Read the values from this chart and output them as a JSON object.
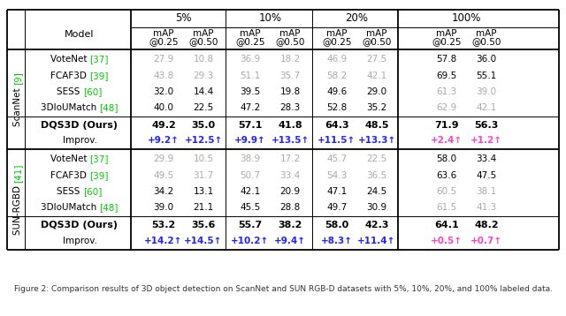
{
  "scannet_label_parts": [
    [
      "ScanNet ",
      "#000000"
    ],
    [
      "[9]",
      "#00cc00"
    ]
  ],
  "sunrgbd_label_parts": [
    [
      "SUN-RGBD ",
      "#000000"
    ],
    [
      "[41]",
      "#00cc00"
    ]
  ],
  "model_names": [
    [
      [
        "VoteNet ",
        "#000000"
      ],
      [
        "[37]",
        "#00cc00"
      ]
    ],
    [
      [
        "FCAF3D ",
        "#000000"
      ],
      [
        "[39]",
        "#00cc00"
      ]
    ],
    [
      [
        "SESS ",
        "#000000"
      ],
      [
        "[60]",
        "#00cc00"
      ]
    ],
    [
      [
        "3DIoUMatch ",
        "#000000"
      ],
      [
        "[48]",
        "#00cc00"
      ]
    ]
  ],
  "scannet_rows": [
    [
      "27.9",
      "10.8",
      "36.9",
      "18.2",
      "46.9",
      "27.5",
      "57.8",
      "36.0"
    ],
    [
      "43.8",
      "29.3",
      "51.1",
      "35.7",
      "58.2",
      "42.1",
      "69.5",
      "55.1"
    ],
    [
      "32.0",
      "14.4",
      "39.5",
      "19.8",
      "49.6",
      "29.0",
      "61.3",
      "39.0"
    ],
    [
      "40.0",
      "22.5",
      "47.2",
      "28.3",
      "52.8",
      "35.2",
      "62.9",
      "42.1"
    ]
  ],
  "scannet_row_colors": [
    [
      "#aaaaaa",
      "#aaaaaa",
      "#aaaaaa",
      "#aaaaaa",
      "#aaaaaa",
      "#aaaaaa",
      "#000000",
      "#000000"
    ],
    [
      "#aaaaaa",
      "#aaaaaa",
      "#aaaaaa",
      "#aaaaaa",
      "#aaaaaa",
      "#aaaaaa",
      "#000000",
      "#000000"
    ],
    [
      "#000000",
      "#000000",
      "#000000",
      "#000000",
      "#000000",
      "#000000",
      "#aaaaaa",
      "#aaaaaa"
    ],
    [
      "#000000",
      "#000000",
      "#000000",
      "#000000",
      "#000000",
      "#000000",
      "#aaaaaa",
      "#aaaaaa"
    ]
  ],
  "scannet_ours_vals": [
    "49.2",
    "35.0",
    "57.1",
    "41.8",
    "64.3",
    "48.5",
    "71.9",
    "56.3"
  ],
  "scannet_improv_vals": [
    "+9.2↑",
    "+12.5↑",
    "+9.9↑",
    "+13.5↑",
    "+11.5↑",
    "+13.3↑",
    "+2.4↑",
    "+1.2↑"
  ],
  "scannet_improv_colors": [
    "#2222ff",
    "#2222ff",
    "#2222ff",
    "#2222ff",
    "#2222ff",
    "#2222ff",
    "#ff44bb",
    "#ff44bb"
  ],
  "sunrgbd_rows": [
    [
      "29.9",
      "10.5",
      "38.9",
      "17.2",
      "45.7",
      "22.5",
      "58.0",
      "33.4"
    ],
    [
      "49.5",
      "31.7",
      "50.7",
      "33.4",
      "54.3",
      "36.5",
      "63.6",
      "47.5"
    ],
    [
      "34.2",
      "13.1",
      "42.1",
      "20.9",
      "47.1",
      "24.5",
      "60.5",
      "38.1"
    ],
    [
      "39.0",
      "21.1",
      "45.5",
      "28.8",
      "49.7",
      "30.9",
      "61.5",
      "41.3"
    ]
  ],
  "sunrgbd_row_colors": [
    [
      "#aaaaaa",
      "#aaaaaa",
      "#aaaaaa",
      "#aaaaaa",
      "#aaaaaa",
      "#aaaaaa",
      "#000000",
      "#000000"
    ],
    [
      "#aaaaaa",
      "#aaaaaa",
      "#aaaaaa",
      "#aaaaaa",
      "#aaaaaa",
      "#aaaaaa",
      "#000000",
      "#000000"
    ],
    [
      "#000000",
      "#000000",
      "#000000",
      "#000000",
      "#000000",
      "#000000",
      "#aaaaaa",
      "#aaaaaa"
    ],
    [
      "#000000",
      "#000000",
      "#000000",
      "#000000",
      "#000000",
      "#000000",
      "#aaaaaa",
      "#aaaaaa"
    ]
  ],
  "sunrgbd_ours_vals": [
    "53.2",
    "35.6",
    "55.7",
    "38.2",
    "58.0",
    "42.3",
    "64.1",
    "48.2"
  ],
  "sunrgbd_improv_vals": [
    "+14.2↑",
    "+14.5↑",
    "+10.2↑",
    "+9.4↑",
    "+8.3↑",
    "+11.4↑",
    "+0.5↑",
    "+0.7↑"
  ],
  "sunrgbd_improv_colors": [
    "#2222ff",
    "#2222ff",
    "#2222ff",
    "#2222ff",
    "#2222ff",
    "#2222ff",
    "#ff44bb",
    "#ff44bb"
  ],
  "caption": "Figure 2: Comparison results of 3D object detection on ScanNet and SUN RGB-D datasets with 5%, 10%, 20%, and 100% labeled data."
}
